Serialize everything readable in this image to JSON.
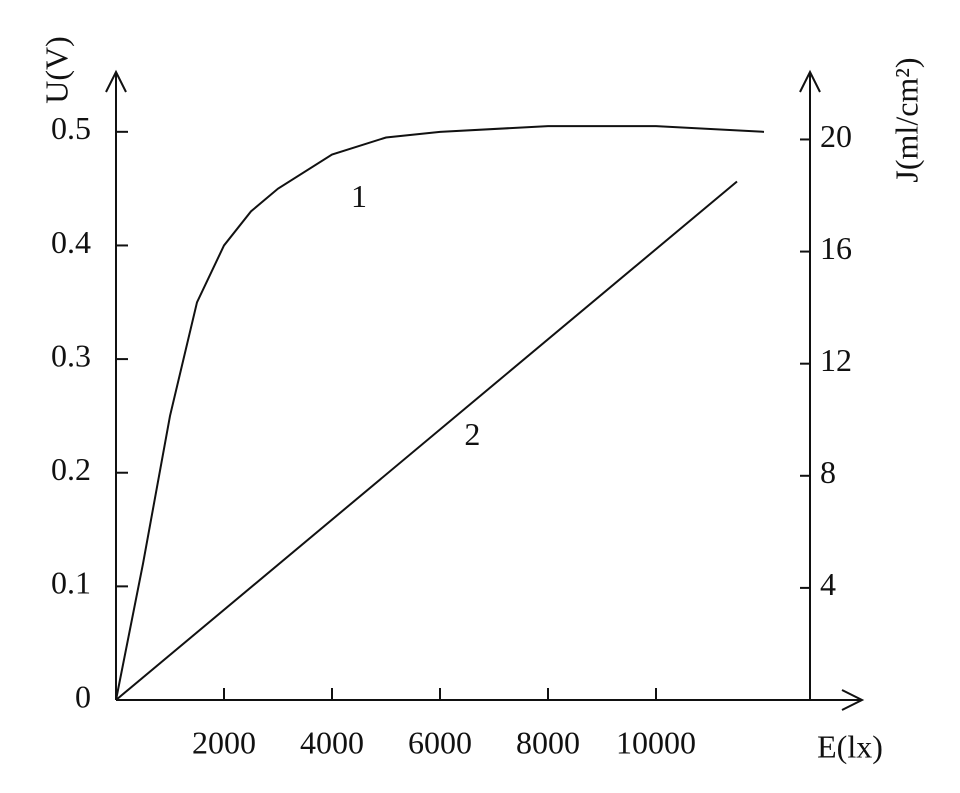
{
  "chart_data": {
    "type": "line",
    "x_label": "E(lx)",
    "y_label": "U(V)",
    "y2_label": "J(ml/cm²)",
    "xlim": [
      0,
      13500
    ],
    "xticks": [
      2000,
      4000,
      6000,
      8000,
      10000
    ],
    "ylim": [
      0,
      0.55
    ],
    "yticks": [
      0,
      0.1,
      0.2,
      0.3,
      0.4,
      0.5
    ],
    "y2lim": [
      0,
      22.3
    ],
    "y2ticks": [
      4,
      8,
      12,
      16,
      20
    ],
    "series": [
      {
        "name": "1",
        "color": "#111111",
        "x": [
          0,
          500,
          1000,
          1500,
          2000,
          2500,
          3000,
          4000,
          5000,
          6000,
          8000,
          10000,
          12000
        ],
        "values": [
          0,
          0.12,
          0.25,
          0.35,
          0.4,
          0.43,
          0.45,
          0.48,
          0.495,
          0.5,
          0.505,
          0.505,
          0.5
        ]
      },
      {
        "name": "2",
        "color": "#111111",
        "axis": "y2",
        "x": [
          0,
          11500
        ],
        "values": [
          0,
          18.5
        ]
      }
    ]
  }
}
